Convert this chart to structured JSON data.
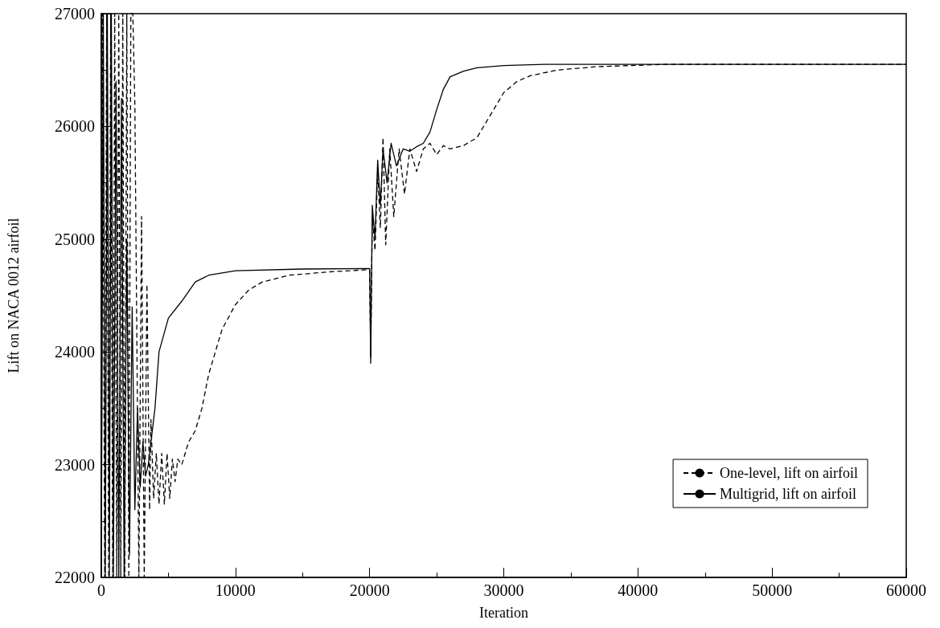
{
  "chart_data": {
    "type": "line",
    "xlabel": "Iteration",
    "ylabel": "Lift on NACA 0012 airfoil",
    "xlim": [
      0,
      60000
    ],
    "ylim": [
      22000,
      27000
    ],
    "xticks": [
      0,
      10000,
      20000,
      30000,
      40000,
      50000,
      60000
    ],
    "yticks": [
      22000,
      23000,
      24000,
      25000,
      26000,
      27000
    ],
    "legend": "bottom right",
    "series": [
      {
        "name": "One-level, lift on airfoil",
        "color": "#000000",
        "line_style": "dashed",
        "x": [
          0,
          100,
          250,
          400,
          550,
          700,
          850,
          1000,
          1150,
          1300,
          1450,
          1600,
          1750,
          1900,
          2050,
          2200,
          2350,
          2500,
          2800,
          3000,
          3200,
          3400,
          3600,
          3700,
          3900,
          4100,
          4300,
          4500,
          4700,
          4900,
          5100,
          5300,
          5500,
          5700,
          6000,
          6500,
          7000,
          7500,
          8000,
          9000,
          10000,
          11000,
          12000,
          14000,
          17000,
          20000,
          20080,
          20200,
          20400,
          20600,
          20800,
          21000,
          21200,
          21500,
          21800,
          22200,
          22600,
          23000,
          23500,
          24000,
          24500,
          25000,
          25500,
          26000,
          27000,
          28000,
          28500,
          29000,
          29500,
          30000,
          31000,
          32000,
          34000,
          37000,
          42000,
          60000
        ],
        "values": [
          22000,
          27000,
          22000,
          27000,
          22000,
          27000,
          22000,
          27000,
          22000,
          27000,
          22000,
          27000,
          22000,
          27000,
          22000,
          27000,
          27000,
          26200,
          22000,
          25200,
          22000,
          24600,
          22600,
          23400,
          22700,
          23100,
          22650,
          23100,
          22650,
          23100,
          22700,
          23050,
          22850,
          23050,
          23000,
          23200,
          23300,
          23500,
          23800,
          24200,
          24420,
          24550,
          24620,
          24680,
          24710,
          24730,
          23950,
          25200,
          24900,
          25600,
          25100,
          25900,
          24950,
          25800,
          25200,
          25800,
          25400,
          25800,
          25600,
          25800,
          25850,
          25750,
          25830,
          25800,
          25830,
          25900,
          26000,
          26100,
          26200,
          26300,
          26400,
          26450,
          26500,
          26530,
          26550,
          26550
        ]
      },
      {
        "name": "Multigrid, lift on airfoil",
        "color": "#000000",
        "line_style": "solid",
        "x": [
          0,
          150,
          300,
          450,
          600,
          750,
          900,
          1100,
          1300,
          1500,
          1700,
          1900,
          2100,
          2300,
          2500,
          2700,
          2900,
          3100,
          3300,
          3500,
          4000,
          4300,
          5000,
          6000,
          7000,
          8000,
          10000,
          15000,
          20000,
          20080,
          20200,
          20400,
          20600,
          20800,
          21000,
          21300,
          21600,
          22000,
          22500,
          23000,
          23500,
          24000,
          24500,
          25000,
          25500,
          26000,
          27000,
          28000,
          30000,
          33000,
          60000
        ],
        "values": [
          22000,
          27000,
          22000,
          27000,
          22000,
          27000,
          22000,
          26400,
          22000,
          26250,
          22000,
          25000,
          22200,
          24400,
          22600,
          23500,
          22800,
          23200,
          22900,
          23000,
          23500,
          24000,
          24300,
          24450,
          24620,
          24680,
          24720,
          24735,
          24740,
          23900,
          25300,
          25000,
          25700,
          25300,
          25800,
          25500,
          25850,
          25650,
          25800,
          25780,
          25820,
          25850,
          25950,
          26150,
          26330,
          26440,
          26490,
          26520,
          26540,
          26550,
          26550
        ]
      }
    ]
  }
}
